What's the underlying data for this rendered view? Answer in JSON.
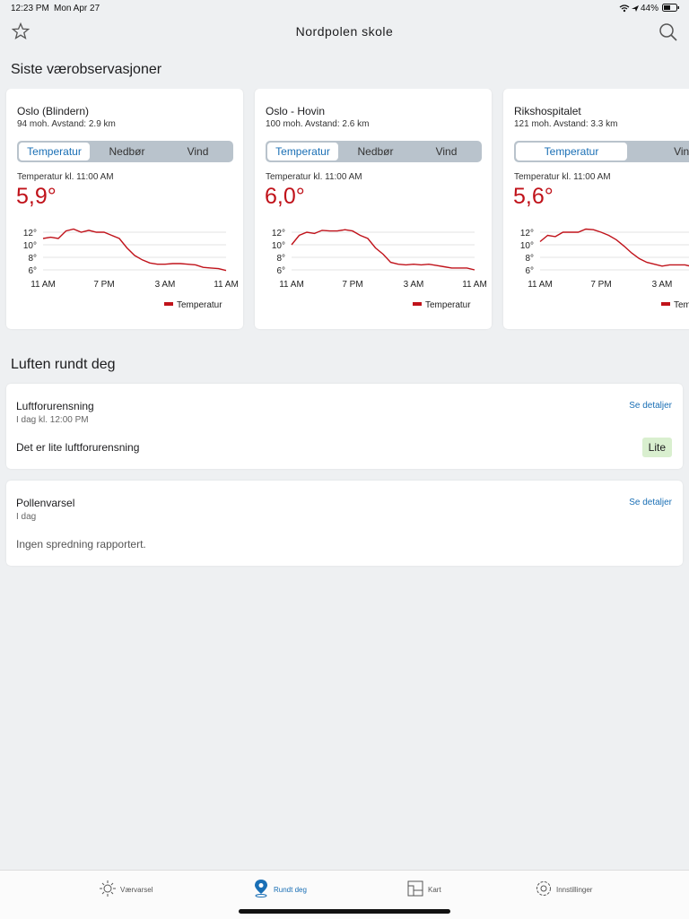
{
  "status_bar": {
    "time": "12:23 PM",
    "date": "Mon Apr 27",
    "battery": "44%"
  },
  "header": {
    "title": "Nordpolen skole"
  },
  "observations": {
    "title": "Siste værobservasjoner"
  },
  "stations": [
    {
      "name": "Oslo (Blindern)",
      "info": "94 moh. Avstand: 2.9 km",
      "tabs": [
        "Temperatur",
        "Nedbør",
        "Vind"
      ],
      "reading_label": "Temperatur kl. 11:00 AM",
      "current": "5,9°"
    },
    {
      "name": "Oslo - Hovin",
      "info": "100 moh. Avstand: 2.6 km",
      "tabs": [
        "Temperatur",
        "Nedbør",
        "Vind"
      ],
      "reading_label": "Temperatur kl. 11:00 AM",
      "current": "6,0°"
    },
    {
      "name": "Rikshospitalet",
      "info": "121 moh. Avstand: 3.3 km",
      "tabs": [
        "Temperatur",
        "Vind"
      ],
      "reading_label": "Temperatur kl. 11:00 AM",
      "current": "5,6°"
    }
  ],
  "chart_data": [
    {
      "type": "line",
      "categories": [
        "11 AM",
        null,
        null,
        null,
        null,
        null,
        null,
        null,
        "7 PM",
        null,
        null,
        null,
        null,
        null,
        null,
        null,
        "3 AM",
        null,
        null,
        null,
        null,
        null,
        null,
        null,
        "11 AM"
      ],
      "series": [
        {
          "name": "Temperatur",
          "color": "#c0121a",
          "values": [
            11.0,
            11.2,
            11.0,
            12.2,
            12.5,
            12.0,
            12.3,
            12.0,
            12.0,
            11.5,
            11.0,
            9.5,
            8.3,
            7.6,
            7.1,
            6.9,
            6.9,
            7.0,
            7.0,
            6.9,
            6.8,
            6.4,
            6.3,
            6.2,
            5.9
          ]
        }
      ],
      "ylim": [
        5,
        13
      ],
      "yticks": [
        {
          "value": 6,
          "label": "6°"
        },
        {
          "value": 8,
          "label": "8°"
        },
        {
          "value": 10,
          "label": "10°"
        },
        {
          "value": 12,
          "label": "12°"
        }
      ],
      "grid": true
    },
    {
      "type": "line",
      "categories": [
        "11 AM",
        null,
        null,
        null,
        null,
        null,
        null,
        null,
        "7 PM",
        null,
        null,
        null,
        null,
        null,
        null,
        null,
        "3 AM",
        null,
        null,
        null,
        null,
        null,
        null,
        null,
        "11 AM"
      ],
      "series": [
        {
          "name": "Temperatur",
          "color": "#c0121a",
          "values": [
            10.0,
            11.5,
            12.0,
            11.8,
            12.3,
            12.2,
            12.2,
            12.4,
            12.2,
            11.5,
            11.0,
            9.5,
            8.5,
            7.2,
            6.9,
            6.8,
            6.9,
            6.8,
            6.9,
            6.7,
            6.5,
            6.3,
            6.3,
            6.3,
            6.0
          ]
        }
      ],
      "ylim": [
        5,
        13
      ],
      "yticks": [
        {
          "value": 6,
          "label": "6°"
        },
        {
          "value": 8,
          "label": "8°"
        },
        {
          "value": 10,
          "label": "10°"
        },
        {
          "value": 12,
          "label": "12°"
        }
      ],
      "grid": true
    },
    {
      "type": "line",
      "categories": [
        "11 AM",
        null,
        null,
        null,
        null,
        null,
        null,
        null,
        "7 PM",
        null,
        null,
        null,
        null,
        null,
        null,
        null,
        "3 AM",
        null,
        null,
        null,
        null,
        null,
        null,
        null,
        null
      ],
      "series": [
        {
          "name": "Temperatur",
          "color": "#c0121a",
          "values": [
            10.5,
            11.5,
            11.3,
            12.0,
            12.0,
            12.0,
            12.5,
            12.4,
            12.0,
            11.5,
            10.8,
            9.8,
            8.7,
            7.8,
            7.2,
            6.9,
            6.6,
            6.8,
            6.8,
            6.8,
            6.5,
            6.2,
            6.0,
            5.8,
            5.6
          ]
        }
      ],
      "ylim": [
        5,
        13
      ],
      "yticks": [
        {
          "value": 6,
          "label": "6°"
        },
        {
          "value": 8,
          "label": "8°"
        },
        {
          "value": 10,
          "label": "10°"
        },
        {
          "value": 12,
          "label": "12°"
        }
      ],
      "grid": true
    }
  ],
  "air": {
    "title": "Luften rundt deg",
    "pollution": {
      "title": "Luftforurensning",
      "time": "I dag kl. 12:00 PM",
      "link": "Se detaljer",
      "text": "Det er lite luftforurensning",
      "badge": "Lite"
    },
    "pollen": {
      "title": "Pollenvarsel",
      "time": "I dag",
      "link": "Se detaljer",
      "text": "Ingen spredning rapportert."
    }
  },
  "tab_bar": [
    "Værvarsel",
    "Rundt deg",
    "Kart",
    "Innstillinger"
  ]
}
